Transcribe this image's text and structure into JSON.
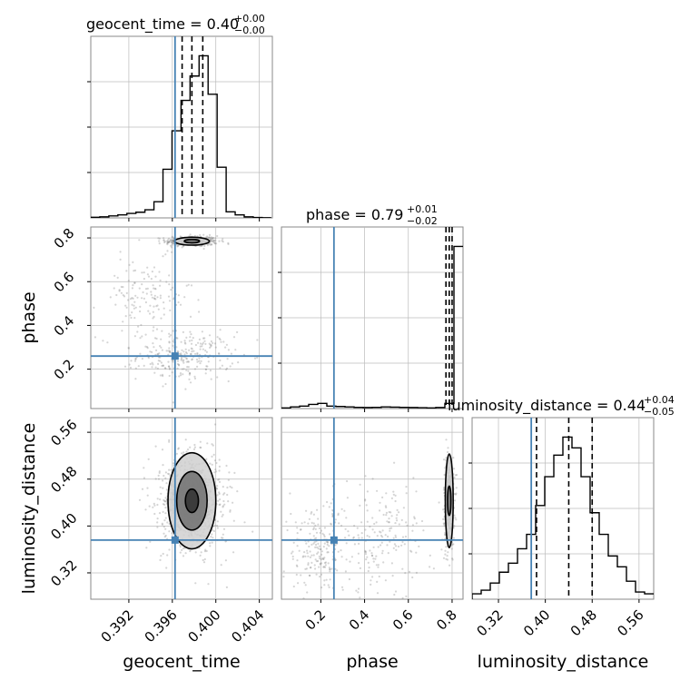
{
  "chart_data": {
    "type": "corner",
    "parameters": [
      {
        "name": "geocent_time",
        "axis_label": "geocent_time",
        "title": "geocent_time = 0.40",
        "title_upper": "+0.00",
        "title_lower": "−0.00",
        "ticks": [
          0.392,
          0.396,
          0.4,
          0.404
        ],
        "tick_labels": [
          "0.392",
          "0.396",
          "0.400",
          "0.404"
        ],
        "range": [
          0.3885,
          0.4052
        ],
        "truth": 0.39625,
        "quantiles": [
          0.3969,
          0.3978,
          0.3988
        ],
        "hist_edges_start": 0.3885,
        "hist_bin_width": 0.00083,
        "hist_counts": [
          0.3,
          0.5,
          1.0,
          1.5,
          2.2,
          2.8,
          4.0,
          8.0,
          24,
          43,
          58,
          70,
          80,
          61,
          25,
          3,
          1.5,
          0.5,
          0.2,
          0.1
        ]
      },
      {
        "name": "phase",
        "axis_label": "phase",
        "title": "phase = 0.79",
        "title_upper": "+0.01",
        "title_lower": "−0.02",
        "ticks": [
          0.2,
          0.4,
          0.6,
          0.8
        ],
        "tick_labels": [
          "0.2",
          "0.4",
          "0.6",
          "0.8"
        ],
        "range": [
          0.02,
          0.85
        ],
        "truth": 0.26,
        "quantiles": [
          0.772,
          0.787,
          0.8
        ],
        "hist_edges_start": 0.02,
        "hist_bin_width": 0.0415,
        "hist_counts": [
          0.3,
          0.8,
          1.2,
          2.0,
          2.5,
          1.2,
          1.0,
          0.8,
          0.6,
          0.5,
          0.6,
          0.8,
          0.7,
          0.6,
          0.5,
          0.4,
          0.3,
          0.5,
          2.5,
          79
        ]
      },
      {
        "name": "luminosity_distance",
        "axis_label": "luminosity_distance",
        "title": "luminosity_distance = 0.44",
        "title_upper": "+0.04",
        "title_lower": "−0.05",
        "ticks": [
          0.32,
          0.4,
          0.48,
          0.56
        ],
        "tick_labels": [
          "0.32",
          "0.40",
          "0.48",
          "0.56"
        ],
        "range": [
          0.275,
          0.585
        ],
        "truth": 0.376,
        "quantiles": [
          0.385,
          0.44,
          0.48
        ],
        "hist_edges_start": 0.275,
        "hist_bin_width": 0.0155,
        "hist_counts": [
          1.5,
          2.5,
          4.5,
          7.5,
          10,
          14,
          18,
          26,
          34,
          40,
          45,
          42,
          34,
          24,
          18,
          12,
          9,
          5,
          2,
          1.5
        ]
      }
    ],
    "scatter_2d": [
      {
        "x": "geocent_time",
        "y": "phase",
        "clusters": [
          {
            "cx": 0.3978,
            "cy": 0.785,
            "sx": 0.0012,
            "sy": 0.012,
            "n": 420
          },
          {
            "cx": 0.3972,
            "cy": 0.26,
            "sx": 0.0022,
            "sy": 0.055,
            "n": 260
          },
          {
            "cx": 0.3935,
            "cy": 0.52,
            "sx": 0.0022,
            "sy": 0.09,
            "n": 140
          }
        ],
        "contours": [
          {
            "cx": 0.3978,
            "cy": 0.785,
            "rx": 0.0016,
            "ry": 0.018
          },
          {
            "cx": 0.3978,
            "cy": 0.785,
            "rx": 0.0007,
            "ry": 0.008
          }
        ]
      },
      {
        "x": "geocent_time",
        "y": "luminosity_distance",
        "clusters": [
          {
            "cx": 0.3978,
            "cy": 0.443,
            "sx": 0.0013,
            "sy": 0.038,
            "n": 900
          },
          {
            "cx": 0.3978,
            "cy": 0.443,
            "sx": 0.0022,
            "sy": 0.06,
            "n": 150
          }
        ],
        "contours": [
          {
            "cx": 0.3978,
            "cy": 0.443,
            "rx": 0.0022,
            "ry": 0.082
          },
          {
            "cx": 0.3978,
            "cy": 0.443,
            "rx": 0.0014,
            "ry": 0.05
          },
          {
            "cx": 0.3978,
            "cy": 0.443,
            "rx": 0.0006,
            "ry": 0.02
          }
        ]
      },
      {
        "x": "phase",
        "y": "luminosity_distance",
        "clusters": [
          {
            "cx": 0.787,
            "cy": 0.443,
            "sx": 0.012,
            "sy": 0.038,
            "n": 420
          },
          {
            "cx": 0.2,
            "cy": 0.36,
            "sx": 0.09,
            "sy": 0.04,
            "n": 240
          },
          {
            "cx": 0.5,
            "cy": 0.38,
            "sx": 0.12,
            "sy": 0.05,
            "n": 160
          }
        ],
        "contours": [
          {
            "cx": 0.787,
            "cy": 0.443,
            "rx": 0.018,
            "ry": 0.08
          },
          {
            "cx": 0.787,
            "cy": 0.443,
            "rx": 0.008,
            "ry": 0.025
          }
        ]
      }
    ],
    "truth_color": "#4682b4",
    "hist_color": "#000000",
    "grid": true
  }
}
